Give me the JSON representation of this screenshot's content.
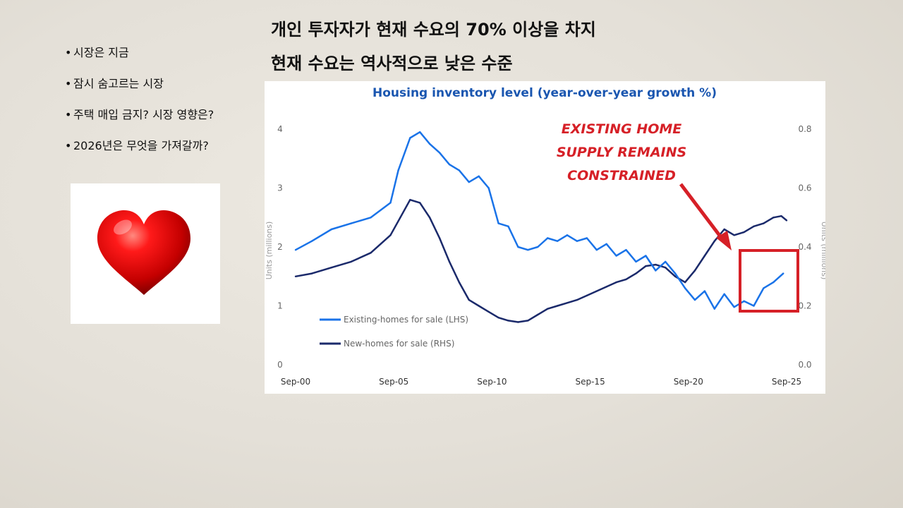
{
  "slide": {
    "headline1": "개인 투자자가 현재 수요의 70% 이상을 차지",
    "headline2": "현재 수요는 역사적으로 낮은 수준",
    "bullets": [
      "시장은 지금",
      "잠시 숨고르는 시장",
      "주택 매입 금지? 시장 영향은?",
      "2026년은 무엇을 가져갈까?"
    ],
    "bullet_symbol": "•",
    "heart_icon": "heart-icon"
  },
  "chart_data": {
    "type": "line",
    "title": "Housing inventory level (year-over-year growth %)",
    "ylabel_left": "Units (millions)",
    "ylabel_right": "Units (millions)",
    "x_ticks": [
      "Sep-00",
      "Sep-05",
      "Sep-10",
      "Sep-15",
      "Sep-20",
      "Sep-25"
    ],
    "y_left_ticks": [
      "0",
      "1",
      "2",
      "3",
      "4"
    ],
    "y_right_ticks": [
      "0.0",
      "0.2",
      "0.4",
      "0.6",
      "0.8"
    ],
    "ylim_left": [
      0,
      4
    ],
    "ylim_right": [
      0,
      0.8
    ],
    "xlim": [
      2000.67,
      2025.67
    ],
    "annotation": [
      "EXISTING HOME",
      "SUPPLY REMAINS",
      "CONSTRAINED"
    ],
    "highlight_color": "#d62027",
    "grid": false,
    "legend_position": "bottom-left",
    "series": [
      {
        "name": "Existing-homes for sale (LHS)",
        "axis": "left",
        "color": "#1a73e8",
        "x": [
          2000.67,
          2001.5,
          2002.5,
          2003.5,
          2004.5,
          2005.5,
          2005.9,
          2006.5,
          2007.0,
          2007.5,
          2008.0,
          2008.5,
          2009.0,
          2009.5,
          2010.0,
          2010.5,
          2011.0,
          2011.5,
          2012.0,
          2012.5,
          2013.0,
          2013.5,
          2014.0,
          2014.5,
          2015.0,
          2015.5,
          2016.0,
          2016.5,
          2017.0,
          2017.5,
          2018.0,
          2018.5,
          2019.0,
          2019.5,
          2020.0,
          2020.5,
          2021.0,
          2021.5,
          2022.0,
          2022.5,
          2023.0,
          2023.5,
          2024.0,
          2024.5,
          2025.0,
          2025.5
        ],
        "y": [
          1.95,
          2.1,
          2.3,
          2.4,
          2.5,
          2.75,
          3.3,
          3.85,
          3.95,
          3.75,
          3.6,
          3.4,
          3.3,
          3.1,
          3.2,
          3.0,
          2.4,
          2.35,
          2.0,
          1.95,
          2.0,
          2.15,
          2.1,
          2.2,
          2.1,
          2.15,
          1.95,
          2.05,
          1.85,
          1.95,
          1.75,
          1.85,
          1.6,
          1.75,
          1.55,
          1.3,
          1.1,
          1.25,
          0.95,
          1.2,
          0.98,
          1.08,
          1.0,
          1.3,
          1.4,
          1.55
        ]
      },
      {
        "name": "New-homes for sale (RHS)",
        "axis": "right",
        "color": "#1b2a6b",
        "x": [
          2000.67,
          2001.5,
          2002.5,
          2003.5,
          2004.5,
          2005.5,
          2006.0,
          2006.5,
          2007.0,
          2007.5,
          2008.0,
          2008.5,
          2009.0,
          2009.5,
          2010.0,
          2010.5,
          2011.0,
          2011.5,
          2012.0,
          2012.5,
          2013.0,
          2013.5,
          2014.0,
          2014.5,
          2015.0,
          2015.5,
          2016.0,
          2016.5,
          2017.0,
          2017.5,
          2018.0,
          2018.5,
          2019.0,
          2019.5,
          2020.0,
          2020.5,
          2021.0,
          2021.5,
          2022.0,
          2022.5,
          2023.0,
          2023.5,
          2024.0,
          2024.5,
          2025.0,
          2025.4,
          2025.67
        ],
        "y": [
          0.3,
          0.31,
          0.33,
          0.35,
          0.38,
          0.44,
          0.5,
          0.56,
          0.55,
          0.5,
          0.43,
          0.35,
          0.28,
          0.22,
          0.2,
          0.18,
          0.16,
          0.15,
          0.145,
          0.15,
          0.17,
          0.19,
          0.2,
          0.21,
          0.22,
          0.235,
          0.25,
          0.265,
          0.28,
          0.29,
          0.31,
          0.335,
          0.34,
          0.33,
          0.3,
          0.28,
          0.32,
          0.37,
          0.42,
          0.46,
          0.44,
          0.45,
          0.47,
          0.48,
          0.5,
          0.505,
          0.49
        ]
      }
    ]
  }
}
